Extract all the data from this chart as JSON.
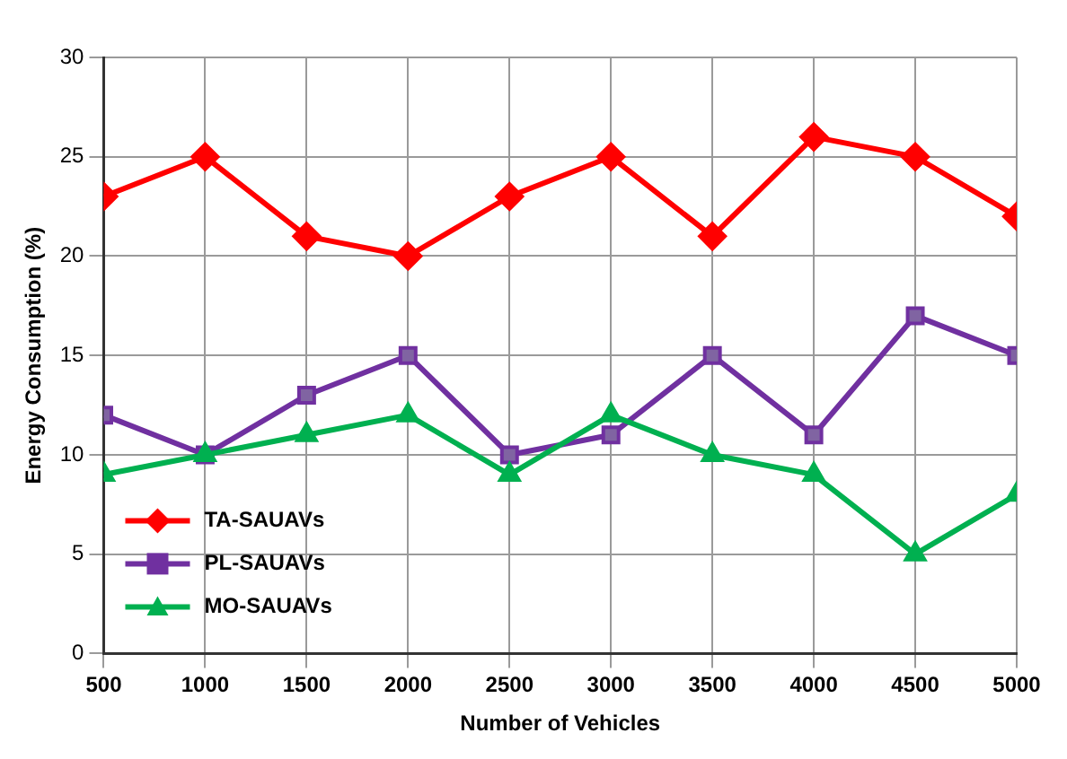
{
  "chart_data": {
    "type": "line",
    "xlabel": "Number of Vehicles",
    "ylabel": "Energy Consumption (%)",
    "x": [
      500,
      1000,
      1500,
      2000,
      2500,
      3000,
      3500,
      4000,
      4500,
      5000
    ],
    "xlim": [
      500,
      5000
    ],
    "xticks": [
      500,
      1000,
      1500,
      2000,
      2500,
      3000,
      3500,
      4000,
      4500,
      5000
    ],
    "ylim": [
      0,
      30
    ],
    "yticks": [
      0,
      5,
      10,
      15,
      20,
      25,
      30
    ],
    "grid": true,
    "legend": "bottom left",
    "line_style": "solid",
    "series": [
      {
        "name": "TA-SAUAVs",
        "color": "#ff0000",
        "marker": "diamond",
        "values": [
          23,
          25,
          21,
          20,
          23,
          25,
          21,
          26,
          25,
          22
        ]
      },
      {
        "name": "PL-SAUAVs",
        "color": "#7030a0",
        "marker": "square",
        "values": [
          12,
          10,
          13,
          15,
          10,
          11,
          15,
          11,
          17,
          15
        ]
      },
      {
        "name": "MO-SAUAVs",
        "color": "#00b050",
        "marker": "triangle",
        "values": [
          9,
          10,
          11,
          12,
          9,
          12,
          10,
          9,
          5,
          8
        ]
      }
    ]
  }
}
